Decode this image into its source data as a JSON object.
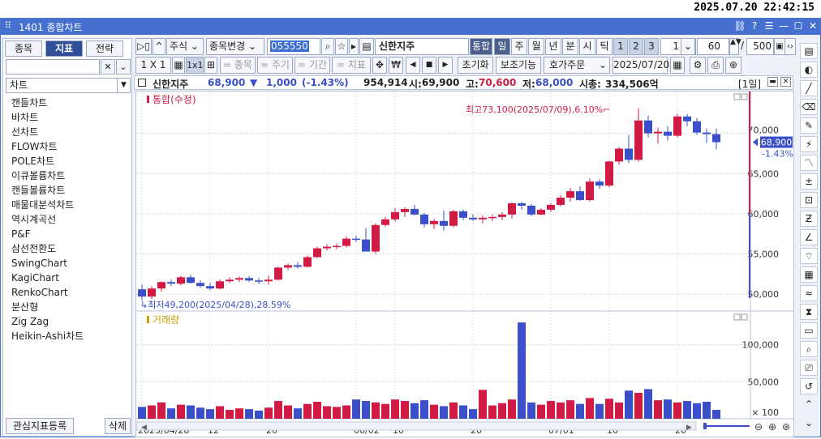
{
  "clock": "2025.07.20 22:42:15",
  "window": {
    "title": "1401 종합차트"
  },
  "left_panel": {
    "tabs": [
      "종목",
      "지표",
      "전략"
    ],
    "active_tab": 1,
    "search_value": "",
    "category": "차트",
    "items": [
      "캔들차트",
      "바차트",
      "선차트",
      "FLOW차트",
      "POLE차트",
      "이큐볼륨차트",
      "캔들볼륨차트",
      "매물대분석차트",
      "역시계곡선",
      "P&F",
      "삼선전환도",
      "SwingChart",
      "KagiChart",
      "RenkoChart",
      "분산형",
      "Zig Zag",
      "Heikin-Ashi차트"
    ],
    "register_label": "관심지표등록",
    "delete_label": "삭제"
  },
  "toolbar1": {
    "market": "주식",
    "change": "종목변경",
    "code": "055550",
    "stock_name": "신한지주",
    "integrated": "통합",
    "periods": [
      "일",
      "주",
      "월",
      "년",
      "분",
      "시",
      "틱"
    ],
    "nums": [
      "1",
      "2",
      "3"
    ],
    "period_value": "1",
    "count_value": "60",
    "slash": "/",
    "total_value": "500"
  },
  "toolbar2": {
    "ratio": "1 X 1",
    "btn_1x1": "1x1",
    "stock": "= 종목",
    "cycle": "= 주기",
    "term": "= 기간",
    "indicator": "= 지표",
    "reset": "초기화",
    "aux": "보조기능",
    "order": "호가주문",
    "date": "2025/07/20"
  },
  "info": {
    "name": "신한지주",
    "price": "68,900",
    "arrow": "▼",
    "change": "1,000",
    "pct": "(-1.43%)",
    "volume": "954,914",
    "open_label": "시:",
    "open": "69,900",
    "high_label": "고:",
    "high": "70,600",
    "low_label": "저:",
    "low": "68,000",
    "mcap_label": "시총:",
    "mcap": "334,506억",
    "period": "[1일]"
  },
  "colors": {
    "up": "#d11b45",
    "down": "#3b4fc8",
    "accent": "#2f4f99"
  },
  "chart_data": {
    "type": "candlestick",
    "price_panel_title": "통합(수정)",
    "volume_panel_title": "거래량",
    "max_annotation": "최고73,100(2025/07/09),6.10%",
    "min_annotation": "최저49,200(2025/04/28),28.59%",
    "current_label": "68,900",
    "current_pct": "-1.43%",
    "price_ticks": [
      "70,000",
      "65,000",
      "60,000",
      "55,000",
      "50,000"
    ],
    "price_tick_values": [
      70000,
      65000,
      60000,
      55000,
      50000
    ],
    "price_range": [
      48000,
      75000
    ],
    "volume_ticks": [
      "100,000",
      "50,000",
      "× 100"
    ],
    "volume_tick_values": [
      100000,
      50000,
      0
    ],
    "volume_range": [
      0,
      140000
    ],
    "x_labels": [
      "2025/04/28",
      "12",
      "20",
      "06/02",
      "10",
      "20",
      "07/01",
      "10",
      "20"
    ],
    "x_label_index": [
      0,
      7,
      13,
      22,
      26,
      34,
      42,
      48,
      55
    ],
    "candles": [
      {
        "o": 50600,
        "h": 51200,
        "l": 49200,
        "c": 49700,
        "v": 16000
      },
      {
        "o": 49700,
        "h": 51000,
        "l": 49400,
        "c": 50700,
        "v": 18000
      },
      {
        "o": 50700,
        "h": 51600,
        "l": 50300,
        "c": 51500,
        "v": 22000
      },
      {
        "o": 51500,
        "h": 51800,
        "l": 51000,
        "c": 51300,
        "v": 14000
      },
      {
        "o": 51300,
        "h": 52300,
        "l": 51100,
        "c": 52100,
        "v": 19000
      },
      {
        "o": 52100,
        "h": 52400,
        "l": 51300,
        "c": 51400,
        "v": 18000
      },
      {
        "o": 51400,
        "h": 51700,
        "l": 50800,
        "c": 51000,
        "v": 15000
      },
      {
        "o": 51000,
        "h": 51400,
        "l": 50500,
        "c": 50700,
        "v": 13000
      },
      {
        "o": 50700,
        "h": 51800,
        "l": 50600,
        "c": 51600,
        "v": 17000
      },
      {
        "o": 51600,
        "h": 52100,
        "l": 51400,
        "c": 51800,
        "v": 12000
      },
      {
        "o": 51800,
        "h": 52200,
        "l": 51500,
        "c": 52000,
        "v": 14000
      },
      {
        "o": 52000,
        "h": 52200,
        "l": 51500,
        "c": 51700,
        "v": 13000
      },
      {
        "o": 51700,
        "h": 52000,
        "l": 51300,
        "c": 51600,
        "v": 11000
      },
      {
        "o": 51600,
        "h": 52300,
        "l": 51200,
        "c": 51800,
        "v": 15000
      },
      {
        "o": 51800,
        "h": 53400,
        "l": 51700,
        "c": 53300,
        "v": 24000
      },
      {
        "o": 53300,
        "h": 53800,
        "l": 53000,
        "c": 53600,
        "v": 18000
      },
      {
        "o": 53600,
        "h": 54000,
        "l": 53200,
        "c": 53400,
        "v": 14000
      },
      {
        "o": 53400,
        "h": 54800,
        "l": 53300,
        "c": 54600,
        "v": 20000
      },
      {
        "o": 54600,
        "h": 55900,
        "l": 54500,
        "c": 55700,
        "v": 23000
      },
      {
        "o": 55700,
        "h": 56200,
        "l": 55400,
        "c": 55900,
        "v": 17000
      },
      {
        "o": 55900,
        "h": 56300,
        "l": 55600,
        "c": 56000,
        "v": 16000
      },
      {
        "o": 56000,
        "h": 57200,
        "l": 55800,
        "c": 56900,
        "v": 18000
      },
      {
        "o": 56900,
        "h": 57300,
        "l": 56500,
        "c": 56800,
        "v": 26000
      },
      {
        "o": 56800,
        "h": 58200,
        "l": 55300,
        "c": 55300,
        "v": 24000
      },
      {
        "o": 55300,
        "h": 58800,
        "l": 55000,
        "c": 58600,
        "v": 22000
      },
      {
        "o": 58600,
        "h": 59600,
        "l": 58400,
        "c": 59300,
        "v": 20000
      },
      {
        "o": 59300,
        "h": 60700,
        "l": 59000,
        "c": 60200,
        "v": 26000
      },
      {
        "o": 60200,
        "h": 60800,
        "l": 59600,
        "c": 60600,
        "v": 24000
      },
      {
        "o": 60600,
        "h": 61100,
        "l": 59800,
        "c": 59900,
        "v": 21000
      },
      {
        "o": 59900,
        "h": 60100,
        "l": 58300,
        "c": 58700,
        "v": 25000
      },
      {
        "o": 58700,
        "h": 59400,
        "l": 58100,
        "c": 59100,
        "v": 19000
      },
      {
        "o": 59100,
        "h": 60400,
        "l": 57900,
        "c": 58500,
        "v": 17000
      },
      {
        "o": 58500,
        "h": 60500,
        "l": 58300,
        "c": 60300,
        "v": 22000
      },
      {
        "o": 60300,
        "h": 60500,
        "l": 59200,
        "c": 59500,
        "v": 18000
      },
      {
        "o": 59500,
        "h": 59900,
        "l": 59100,
        "c": 59300,
        "v": 13000
      },
      {
        "o": 59300,
        "h": 59800,
        "l": 58800,
        "c": 59500,
        "v": 39000
      },
      {
        "o": 59500,
        "h": 59900,
        "l": 59100,
        "c": 59600,
        "v": 18000
      },
      {
        "o": 59600,
        "h": 60200,
        "l": 59200,
        "c": 59900,
        "v": 21000
      },
      {
        "o": 59900,
        "h": 61400,
        "l": 59400,
        "c": 61300,
        "v": 26000
      },
      {
        "o": 61300,
        "h": 61500,
        "l": 60500,
        "c": 61000,
        "v": 130000
      },
      {
        "o": 61000,
        "h": 61200,
        "l": 59700,
        "c": 59900,
        "v": 22000
      },
      {
        "o": 59900,
        "h": 60700,
        "l": 59800,
        "c": 60500,
        "v": 19000
      },
      {
        "o": 60500,
        "h": 61300,
        "l": 60200,
        "c": 61100,
        "v": 24000
      },
      {
        "o": 61100,
        "h": 62300,
        "l": 60900,
        "c": 62000,
        "v": 22000
      },
      {
        "o": 62000,
        "h": 63200,
        "l": 61500,
        "c": 62800,
        "v": 25000
      },
      {
        "o": 62800,
        "h": 63400,
        "l": 61600,
        "c": 61700,
        "v": 20000
      },
      {
        "o": 61700,
        "h": 64400,
        "l": 61500,
        "c": 64000,
        "v": 28000
      },
      {
        "o": 64000,
        "h": 64300,
        "l": 63100,
        "c": 63500,
        "v": 20000
      },
      {
        "o": 63500,
        "h": 66600,
        "l": 63300,
        "c": 66500,
        "v": 27000
      },
      {
        "o": 66500,
        "h": 68300,
        "l": 66100,
        "c": 68100,
        "v": 22000
      },
      {
        "o": 68100,
        "h": 69800,
        "l": 66300,
        "c": 66700,
        "v": 38000
      },
      {
        "o": 66700,
        "h": 73100,
        "l": 66500,
        "c": 71600,
        "v": 35000
      },
      {
        "o": 71600,
        "h": 72200,
        "l": 69500,
        "c": 70000,
        "v": 40000
      },
      {
        "o": 70000,
        "h": 70700,
        "l": 68700,
        "c": 70200,
        "v": 25000
      },
      {
        "o": 70200,
        "h": 70900,
        "l": 69100,
        "c": 69700,
        "v": 26000
      },
      {
        "o": 69700,
        "h": 72400,
        "l": 69500,
        "c": 72100,
        "v": 22000
      },
      {
        "o": 72100,
        "h": 72400,
        "l": 70900,
        "c": 71500,
        "v": 24000
      },
      {
        "o": 71500,
        "h": 71900,
        "l": 69800,
        "c": 70100,
        "v": 21000
      },
      {
        "o": 70100,
        "h": 70600,
        "l": 68800,
        "c": 69900,
        "v": 23000
      },
      {
        "o": 69900,
        "h": 70600,
        "l": 68000,
        "c": 68900,
        "v": 12000
      }
    ]
  }
}
